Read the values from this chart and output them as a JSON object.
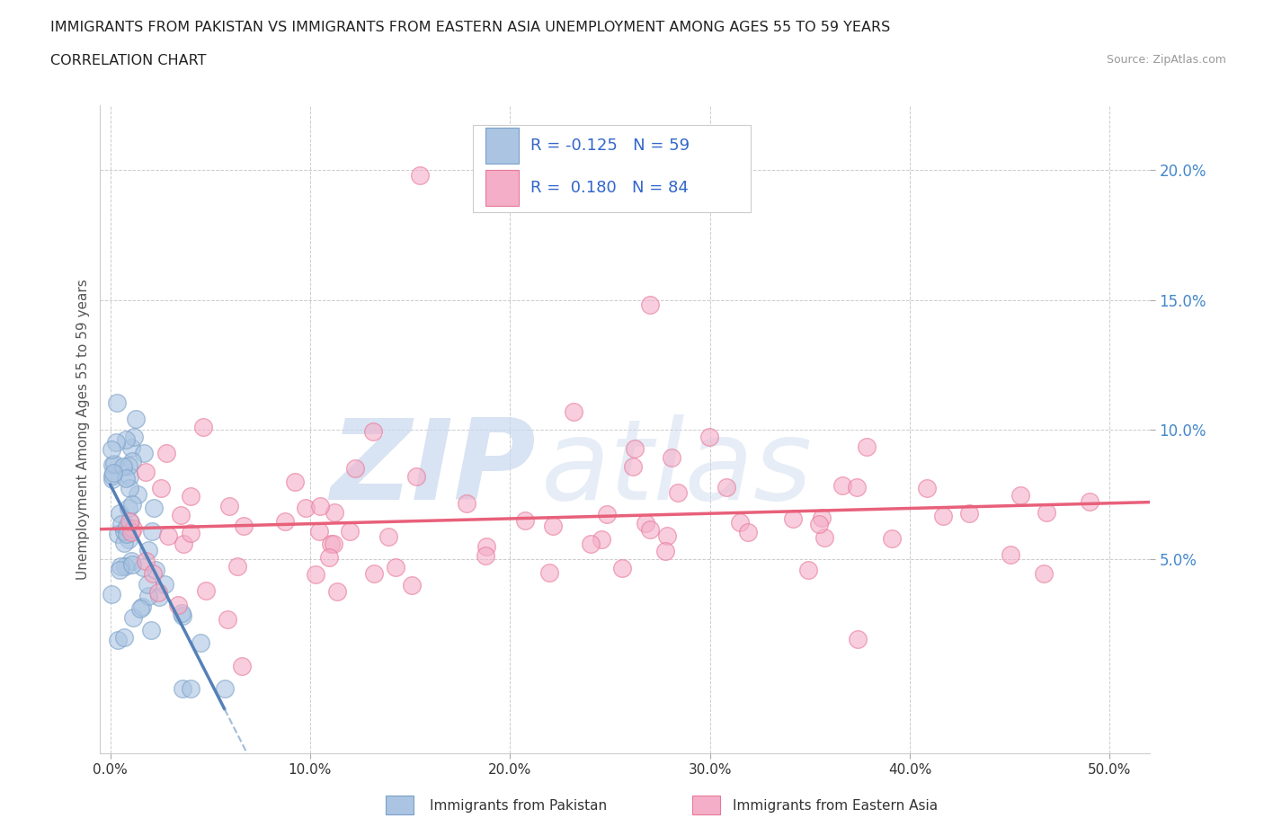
{
  "title_line1": "IMMIGRANTS FROM PAKISTAN VS IMMIGRANTS FROM EASTERN ASIA UNEMPLOYMENT AMONG AGES 55 TO 59 YEARS",
  "title_line2": "CORRELATION CHART",
  "source_text": "Source: ZipAtlas.com",
  "ylabel": "Unemployment Among Ages 55 to 59 years",
  "xlim": [
    -0.005,
    0.52
  ],
  "ylim": [
    -0.025,
    0.225
  ],
  "xticks": [
    0.0,
    0.1,
    0.2,
    0.3,
    0.4,
    0.5
  ],
  "xtick_labels": [
    "0.0%",
    "10.0%",
    "20.0%",
    "30.0%",
    "40.0%",
    "50.0%"
  ],
  "yticks": [
    0.05,
    0.1,
    0.15,
    0.2
  ],
  "ytick_labels": [
    "5.0%",
    "10.0%",
    "15.0%",
    "20.0%"
  ],
  "grid_color": "#cccccc",
  "background_color": "#ffffff",
  "watermark_zip": "ZIP",
  "watermark_atlas": "atlas",
  "watermark_color_zip": "#c8d8ee",
  "watermark_color_atlas": "#c8d8ee",
  "pakistan_color": "#aac4e2",
  "eastern_asia_color": "#f4aec8",
  "pakistan_edge_color": "#7aA0c8",
  "eastern_asia_edge_color": "#e87898",
  "pakistan_line_color": "#5580b8",
  "eastern_asia_line_color": "#e8607a",
  "pakistan_R": -0.125,
  "pakistan_N": 59,
  "eastern_asia_R": 0.18,
  "eastern_asia_N": 84,
  "legend_label_pakistan": "Immigrants from Pakistan",
  "legend_label_eastern_asia": "Immigrants from Eastern Asia",
  "tick_color": "#4488cc",
  "axis_label_color": "#555555"
}
